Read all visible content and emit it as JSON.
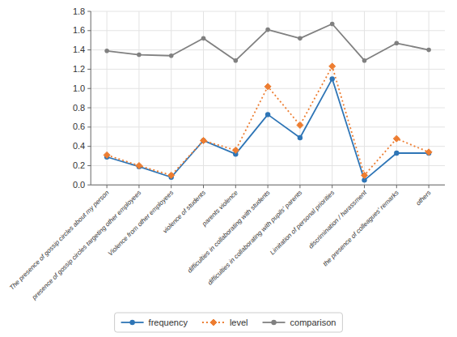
{
  "chart_data": {
    "type": "line",
    "categories": [
      "The presence of gossip circles about my person",
      "presence of gossip circles targeting other employees",
      "Violence from other employees",
      "violence of students",
      "parents violence",
      "difficulties in collaborating with students",
      "difficulties in collaborating with pupils' parents",
      "Limitation of personal priorities",
      "discrimination / harassment",
      "the presence of colleagues' remarks",
      "others"
    ],
    "series": [
      {
        "name": "frequency",
        "color": "#2E75B6",
        "marker": "circle",
        "line_style": "solid",
        "values": [
          0.29,
          0.19,
          0.08,
          0.46,
          0.32,
          0.73,
          0.49,
          1.1,
          0.05,
          0.33,
          0.33
        ]
      },
      {
        "name": "level",
        "color": "#ED7D31",
        "marker": "diamond",
        "line_style": "dotted",
        "values": [
          0.31,
          0.2,
          0.1,
          0.46,
          0.36,
          1.02,
          0.62,
          1.23,
          0.1,
          0.48,
          0.34
        ]
      },
      {
        "name": "comparison",
        "color": "#808080",
        "marker": "circle",
        "line_style": "solid",
        "values": [
          1.39,
          1.35,
          1.34,
          1.52,
          1.29,
          1.61,
          1.52,
          1.67,
          1.29,
          1.47,
          1.4
        ]
      }
    ],
    "ylim": [
      0,
      1.8
    ],
    "yticks": [
      {
        "value": 0,
        "label": "0.0"
      },
      0.2,
      0.4,
      0.6,
      0.8,
      {
        "value": 1.0,
        "label": "1.0"
      },
      1.2,
      1.4,
      1.6,
      1.8
    ],
    "grid": true,
    "legend": "bottom"
  }
}
